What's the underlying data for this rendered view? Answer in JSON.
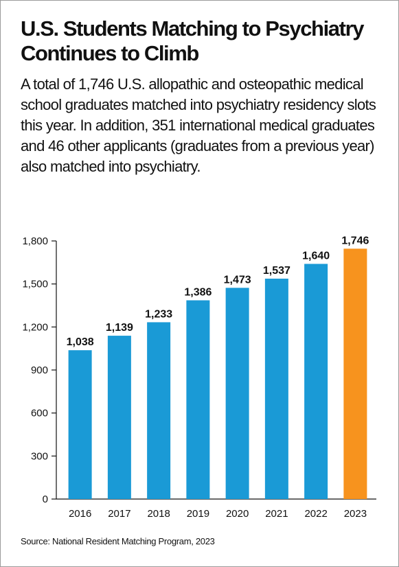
{
  "title": "U.S. Students Matching to Psychiatry Continues to Climb",
  "description": "A total of 1,746 U.S. allopathic and osteopathic medical school graduates matched into psychiatry residency slots this year. In addition, 351 international medical graduates and 46 other applicants (graduates from a previous year) also matched into psychiatry.",
  "source": "Source: National Resident Matching Program, 2023",
  "colors": {
    "bar": "#1a9ad6",
    "highlight": "#f7931e",
    "axis": "#111111"
  },
  "chart_data": {
    "type": "bar",
    "categories": [
      "2016",
      "2017",
      "2018",
      "2019",
      "2020",
      "2021",
      "2022",
      "2023"
    ],
    "values": [
      1038,
      1139,
      1233,
      1386,
      1473,
      1537,
      1640,
      1746
    ],
    "value_labels": [
      "1,038",
      "1,139",
      "1,233",
      "1,386",
      "1,473",
      "1,537",
      "1,640",
      "1,746"
    ],
    "highlight_category": "2023",
    "ylim": [
      0,
      1800
    ],
    "yticks": [
      0,
      300,
      600,
      900,
      1200,
      1500,
      1800
    ],
    "ytick_labels": [
      "0",
      "300",
      "600",
      "900",
      "1,200",
      "1,500",
      "1,800"
    ],
    "grid": false,
    "xlabel": "",
    "ylabel": ""
  }
}
